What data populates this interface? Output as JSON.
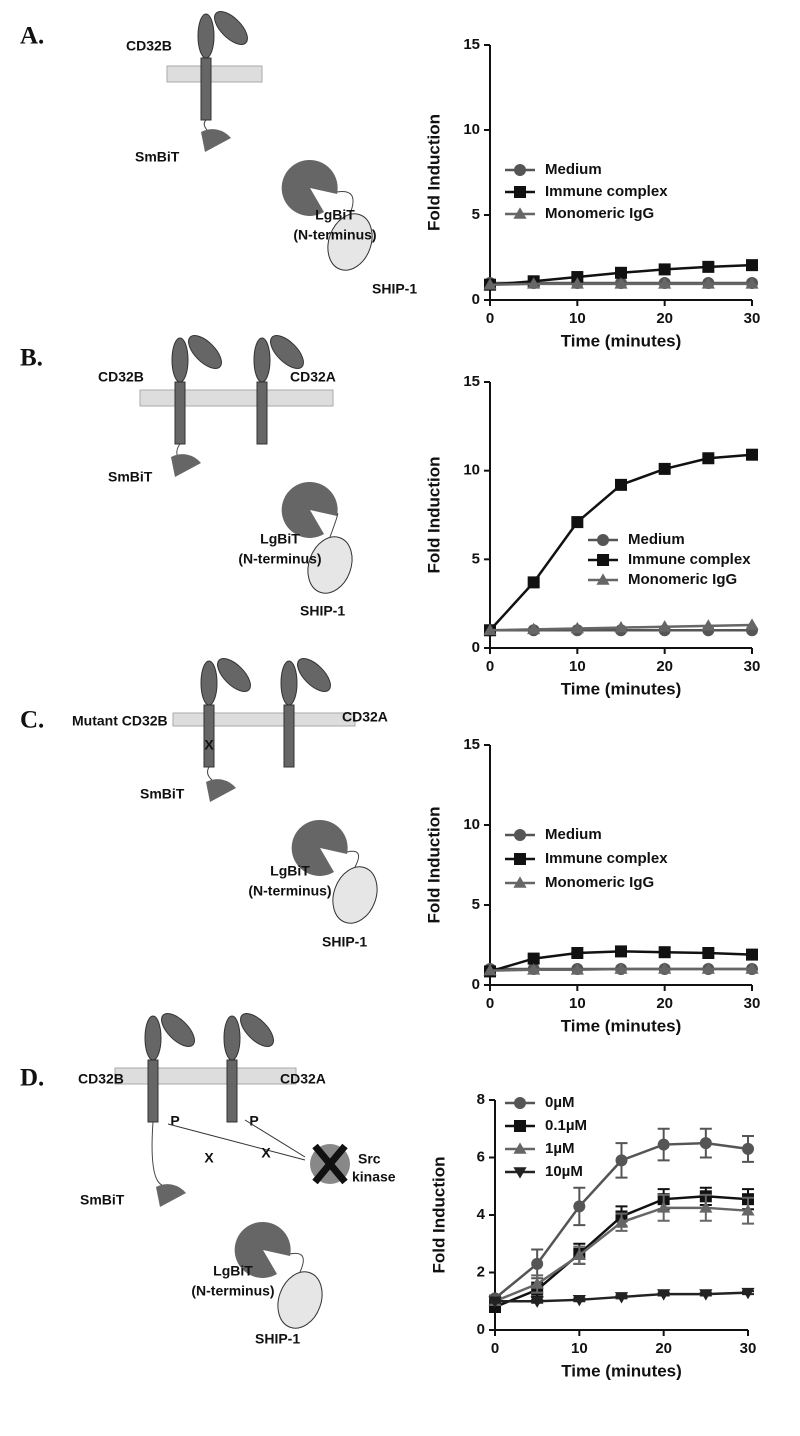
{
  "panels": [
    {
      "label": "A.",
      "diagram": {
        "receptors": [
          "CD32B"
        ],
        "smbit": "SmBiT",
        "lgbit": "LgBiT",
        "lgbit_note": "(N-terminus)",
        "ship": "SHIP-1"
      }
    },
    {
      "label": "B.",
      "diagram": {
        "receptors": [
          "CD32B",
          "CD32A"
        ],
        "smbit": "SmBiT",
        "lgbit": "LgBiT",
        "lgbit_note": "(N-terminus)",
        "ship": "SHIP-1"
      }
    },
    {
      "label": "C.",
      "diagram": {
        "receptors": [
          "Mutant CD32B",
          "CD32A"
        ],
        "mutation": "X",
        "smbit": "SmBiT",
        "lgbit": "LgBiT",
        "lgbit_note": "(N-terminus)",
        "ship": "SHIP-1"
      }
    },
    {
      "label": "D.",
      "diagram": {
        "receptors": [
          "CD32B",
          "CD32A"
        ],
        "phospho": [
          "P",
          "P"
        ],
        "blocked": [
          "X",
          "X"
        ],
        "kinase": [
          "Src",
          "kinase"
        ],
        "smbit": "SmBiT",
        "lgbit": "LgBiT",
        "lgbit_note": "(N-terminus)",
        "ship": "SHIP-1"
      }
    }
  ],
  "chart_data": [
    {
      "type": "line",
      "x_label": "Time (minutes)",
      "y_label": "Fold Induction",
      "x": [
        0,
        5,
        10,
        15,
        20,
        25,
        30
      ],
      "xlim": [
        0,
        30
      ],
      "xticks": [
        0,
        10,
        20,
        30
      ],
      "ylim": [
        0,
        15
      ],
      "yticks": [
        0,
        5,
        10,
        15
      ],
      "series": [
        {
          "name": "Medium",
          "color": "#555555",
          "marker": "circle",
          "values": [
            1,
            1,
            1,
            1,
            1,
            1,
            1
          ]
        },
        {
          "name": "Immune complex",
          "color": "#111111",
          "marker": "square",
          "values": [
            0.9,
            1.1,
            1.35,
            1.6,
            1.8,
            1.95,
            2.05
          ]
        },
        {
          "name": "Monomeric IgG",
          "color": "#666666",
          "marker": "triangle",
          "values": [
            0.9,
            0.95,
            0.95,
            0.95,
            0.95,
            0.95,
            0.95
          ]
        }
      ]
    },
    {
      "type": "line",
      "x_label": "Time (minutes)",
      "y_label": "Fold Induction",
      "x": [
        0,
        5,
        10,
        15,
        20,
        25,
        30
      ],
      "xlim": [
        0,
        30
      ],
      "xticks": [
        0,
        10,
        20,
        30
      ],
      "ylim": [
        0,
        15
      ],
      "yticks": [
        0,
        5,
        10,
        15
      ],
      "series": [
        {
          "name": "Medium",
          "color": "#555555",
          "marker": "circle",
          "values": [
            1,
            1,
            1,
            1,
            1,
            1,
            1
          ]
        },
        {
          "name": "Immune complex",
          "color": "#111111",
          "marker": "square",
          "values": [
            1,
            3.7,
            7.1,
            9.2,
            10.1,
            10.7,
            10.9
          ]
        },
        {
          "name": "Monomeric IgG",
          "color": "#666666",
          "marker": "triangle",
          "values": [
            1,
            1.05,
            1.1,
            1.15,
            1.2,
            1.25,
            1.3
          ]
        }
      ]
    },
    {
      "type": "line",
      "x_label": "Time (minutes)",
      "y_label": "Fold Induction",
      "x": [
        0,
        5,
        10,
        15,
        20,
        25,
        30
      ],
      "xlim": [
        0,
        30
      ],
      "xticks": [
        0,
        10,
        20,
        30
      ],
      "ylim": [
        0,
        15
      ],
      "yticks": [
        0,
        5,
        10,
        15
      ],
      "series": [
        {
          "name": "Medium",
          "color": "#555555",
          "marker": "circle",
          "values": [
            1,
            1,
            1,
            1,
            1,
            1,
            1
          ]
        },
        {
          "name": "Immune complex",
          "color": "#111111",
          "marker": "square",
          "values": [
            0.85,
            1.65,
            2,
            2.1,
            2.05,
            2,
            1.9
          ]
        },
        {
          "name": "Monomeric IgG",
          "color": "#666666",
          "marker": "triangle",
          "values": [
            0.9,
            0.95,
            0.95,
            1,
            1,
            1,
            1
          ]
        }
      ]
    },
    {
      "type": "line",
      "x_label": "Time (minutes)",
      "y_label": "Fold Induction",
      "x": [
        0,
        5,
        10,
        15,
        20,
        25,
        30
      ],
      "xlim": [
        0,
        30
      ],
      "xticks": [
        0,
        10,
        20,
        30
      ],
      "ylim": [
        0,
        8
      ],
      "yticks": [
        0,
        2,
        4,
        6,
        8
      ],
      "series": [
        {
          "name": "0µM",
          "color": "#555555",
          "marker": "circle",
          "values": [
            1.1,
            2.3,
            4.3,
            5.9,
            6.45,
            6.5,
            6.3
          ],
          "errors": [
            0.1,
            0.5,
            0.65,
            0.6,
            0.55,
            0.5,
            0.45
          ]
        },
        {
          "name": "0.1µM",
          "color": "#111111",
          "marker": "square",
          "values": [
            0.8,
            1.4,
            2.65,
            3.95,
            4.55,
            4.65,
            4.55
          ],
          "errors": [
            0.05,
            0.25,
            0.35,
            0.35,
            0.35,
            0.3,
            0.35
          ]
        },
        {
          "name": "1µM",
          "color": "#666666",
          "marker": "triangle",
          "values": [
            1,
            1.6,
            2.6,
            3.75,
            4.25,
            4.25,
            4.15
          ],
          "errors": [
            0.05,
            0.3,
            0.3,
            0.3,
            0.45,
            0.45,
            0.45
          ]
        },
        {
          "name": "10µM",
          "color": "#222222",
          "marker": "triangle-down",
          "values": [
            1,
            1,
            1.05,
            1.15,
            1.25,
            1.25,
            1.3
          ],
          "errors": [
            0.05,
            0.05,
            0.05,
            0.05,
            0.05,
            0.05,
            0.05
          ]
        }
      ]
    }
  ]
}
